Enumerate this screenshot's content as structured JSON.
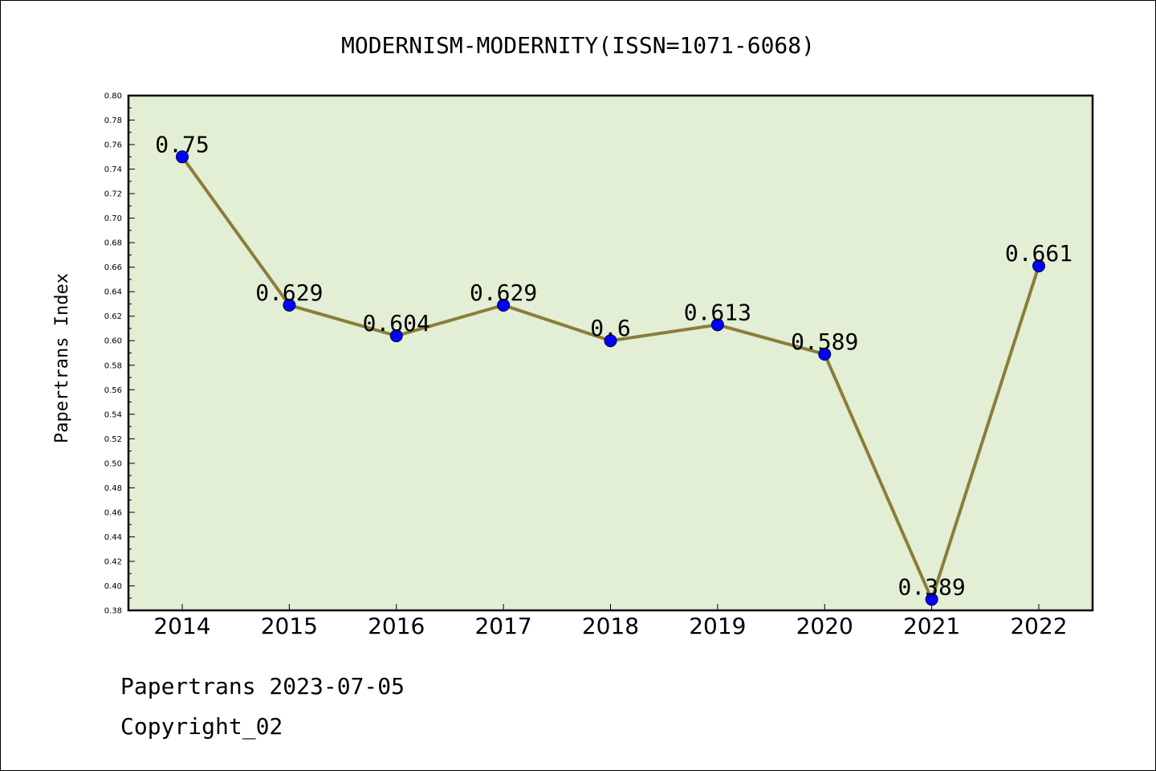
{
  "chart_data": {
    "type": "line",
    "title": "MODERNISM-MODERNITY(ISSN=1071-6068)",
    "xlabel": "",
    "ylabel": "Papertrans Index",
    "x": [
      "2014",
      "2015",
      "2016",
      "2017",
      "2018",
      "2019",
      "2020",
      "2021",
      "2022"
    ],
    "values": [
      0.75,
      0.629,
      0.604,
      0.629,
      0.6,
      0.613,
      0.589,
      0.389,
      0.661
    ],
    "value_labels": [
      "0.75",
      "0.629",
      "0.604",
      "0.629",
      "0.6",
      "0.613",
      "0.589",
      "0.389",
      "0.661"
    ],
    "ylim": [
      0.38,
      0.8
    ],
    "yticks": [
      "0.38",
      "0.40",
      "0.42",
      "0.44",
      "0.46",
      "0.48",
      "0.50",
      "0.52",
      "0.54",
      "0.56",
      "0.58",
      "0.60",
      "0.62",
      "0.64",
      "0.66",
      "0.68",
      "0.70",
      "0.72",
      "0.74",
      "0.76",
      "0.78",
      "0.80"
    ],
    "grid": false,
    "colors": {
      "plot_background": "#e2efd5",
      "line": "#8b7d3a",
      "marker": "#0000ff"
    }
  },
  "footer": {
    "line1": "Papertrans 2023-07-05",
    "line2": "Copyright_02"
  }
}
